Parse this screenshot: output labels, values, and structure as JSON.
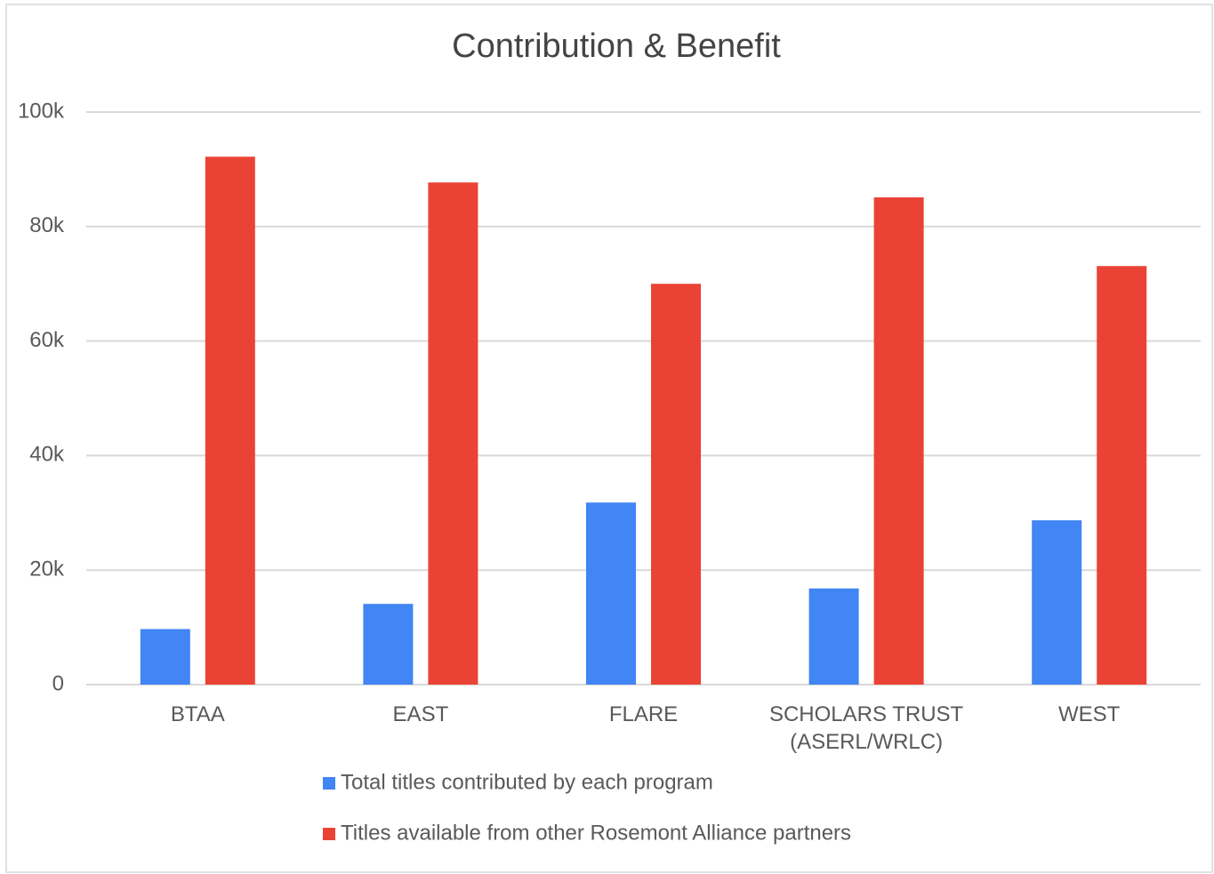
{
  "chart_data": {
    "type": "bar",
    "title": "Contribution & Benefit",
    "categories": [
      "BTAA",
      "EAST",
      "FLARE",
      "SCHOLARS TRUST (ASERL/WRLC)",
      "WEST"
    ],
    "series": [
      {
        "name": "Total titles contributed by each program",
        "color": "#4285f4",
        "values": [
          9700,
          14100,
          31800,
          16800,
          28700
        ]
      },
      {
        "name": "Titles available from other Rosemont Alliance partners",
        "color": "#ea4335",
        "values": [
          92200,
          87700,
          70000,
          85100,
          73100
        ]
      }
    ],
    "ylim": [
      0,
      100000
    ],
    "yticks": [
      0,
      {
        "value": 20000,
        "label": "20k"
      },
      {
        "value": 40000,
        "label": "40k"
      },
      {
        "value": 60000,
        "label": "60k"
      },
      {
        "value": 80000,
        "label": "80k"
      },
      {
        "value": 100000,
        "label": "100k"
      }
    ],
    "grid": true,
    "legend": "bottom"
  }
}
